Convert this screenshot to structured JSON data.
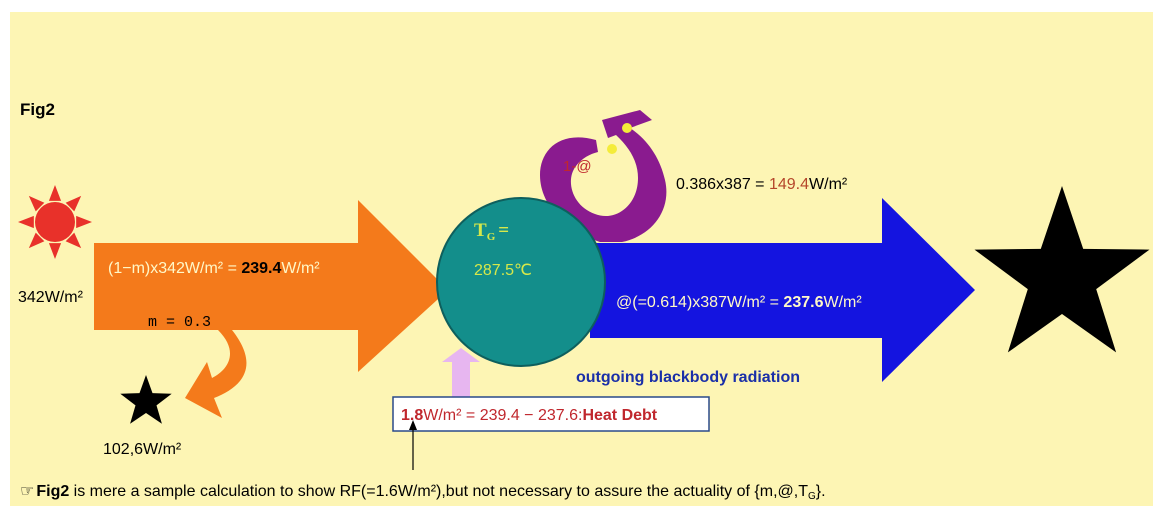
{
  "figure": {
    "label": "Fig2",
    "background": "#fdf5b4",
    "colors": {
      "sun": "#e8312a",
      "incoming_arrow": "#f47a1b",
      "earth": "#138e8b",
      "earth_text": "#d6e84a",
      "absorb_arrow": "#8a1b8f",
      "outgoing_arrow": "#1414e0",
      "heat_box_border": "#2a4a8a",
      "heat_box_fill": "#ffffff",
      "heat_up_arrow": "#e7b6f0",
      "red_text": "#c0272d",
      "brown_text": "#b5462a",
      "label_blue": "#1a2fa8",
      "star": "#000000"
    }
  },
  "sun": {
    "icon": "sun-icon",
    "flux_label": "342W/m²"
  },
  "incoming": {
    "formula_prefix": "(1−m)x342W/m² = ",
    "formula_value": "239.4",
    "formula_suffix": "W/m²",
    "m_label": "m = 0.3"
  },
  "reflected": {
    "icon": "small-star-icon",
    "flux_label": "102,6W/m²"
  },
  "earth": {
    "temp_symbol": "T",
    "temp_sub": "G",
    "temp_eq": "=",
    "temp_value": "287.5℃"
  },
  "absorbed": {
    "label": "1-@",
    "formula_prefix": "0.386x387 = ",
    "formula_value": "149.4",
    "formula_suffix": "W/m²"
  },
  "outgoing": {
    "formula_prefix": "@(=0.614)x387W/m² = ",
    "formula_value": "237.6",
    "formula_suffix": "W/m²",
    "label": "outgoing blackbody radiation",
    "icon": "big-star-icon"
  },
  "heat_debt": {
    "value": "1.8",
    "expression": "W/m² = 239.4 − 237.6:",
    "label": "Heat Debt"
  },
  "note": {
    "icon": "pointing-hand-icon",
    "bold_start": "Fig2",
    "text": " is mere a sample calculation to show RF(=1.6W/m²),but not necessary to assure the actuality of {m,@,T",
    "sub": "G",
    "end": "}."
  }
}
